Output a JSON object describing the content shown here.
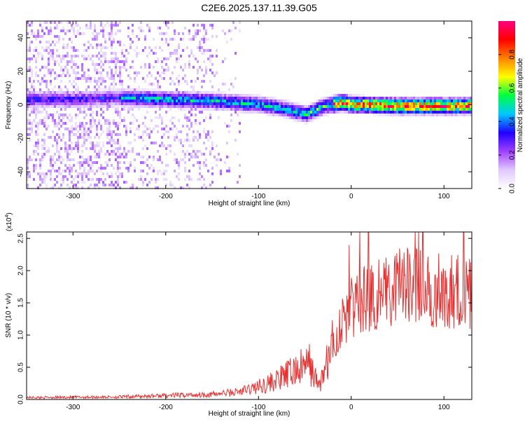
{
  "title": "C2E6.2025.137.11.39.G05",
  "chart_data": [
    {
      "type": "heatmap",
      "xlabel": "Height of straight line (km)",
      "ylabel": "Frequency (Hz)",
      "xlim": [
        -350,
        130
      ],
      "ylim": [
        -50,
        50
      ],
      "xticks": [
        -300,
        -200,
        -100,
        0,
        100
      ],
      "yticks": [
        -40,
        -20,
        0,
        20,
        40
      ],
      "colorbar": {
        "label": "Normalized spectral amplitude",
        "ticks": [
          "0.0",
          "0.2",
          "0.4",
          "0.6",
          "0.8"
        ],
        "range": [
          0,
          1
        ],
        "stops": [
          "#ffffff",
          "#e0c8ff",
          "#a040ff",
          "#2000ff",
          "#00c8ff",
          "#00ff40",
          "#ffff00",
          "#ff8000",
          "#ff0000",
          "#ff0080"
        ]
      },
      "ridge": {
        "x": [
          -330,
          -300,
          -250,
          -200,
          -150,
          -100,
          -70,
          -50,
          -30,
          -10,
          0,
          50,
          100,
          130
        ],
        "y": [
          4,
          4,
          5,
          4,
          3,
          1,
          -2,
          -5,
          0,
          2,
          1,
          0,
          0,
          0
        ]
      }
    },
    {
      "type": "line",
      "xlabel": "Height of straight line (km)",
      "ylabel": "SNR (10 * v/v)",
      "yscale_label": "(x10",
      "yscale_exp": "4",
      "yscale_close": ")",
      "xlim": [
        -350,
        130
      ],
      "ylim": [
        0,
        2.6
      ],
      "xticks": [
        -300,
        -200,
        -100,
        0,
        100
      ],
      "yticks": [
        "0.0",
        "0.5",
        "1.0",
        "1.5",
        "2.0",
        "2.5"
      ],
      "color": "#e83030",
      "envelope": {
        "x": [
          -350,
          -250,
          -200,
          -150,
          -120,
          -100,
          -80,
          -60,
          -45,
          -35,
          -30,
          -20,
          -10,
          0,
          20,
          40,
          60,
          80,
          100,
          130
        ],
        "y": [
          0.03,
          0.04,
          0.06,
          0.08,
          0.12,
          0.2,
          0.3,
          0.45,
          0.55,
          0.2,
          0.4,
          0.8,
          1.2,
          1.4,
          1.6,
          1.75,
          1.75,
          1.72,
          1.7,
          1.65
        ]
      }
    }
  ]
}
